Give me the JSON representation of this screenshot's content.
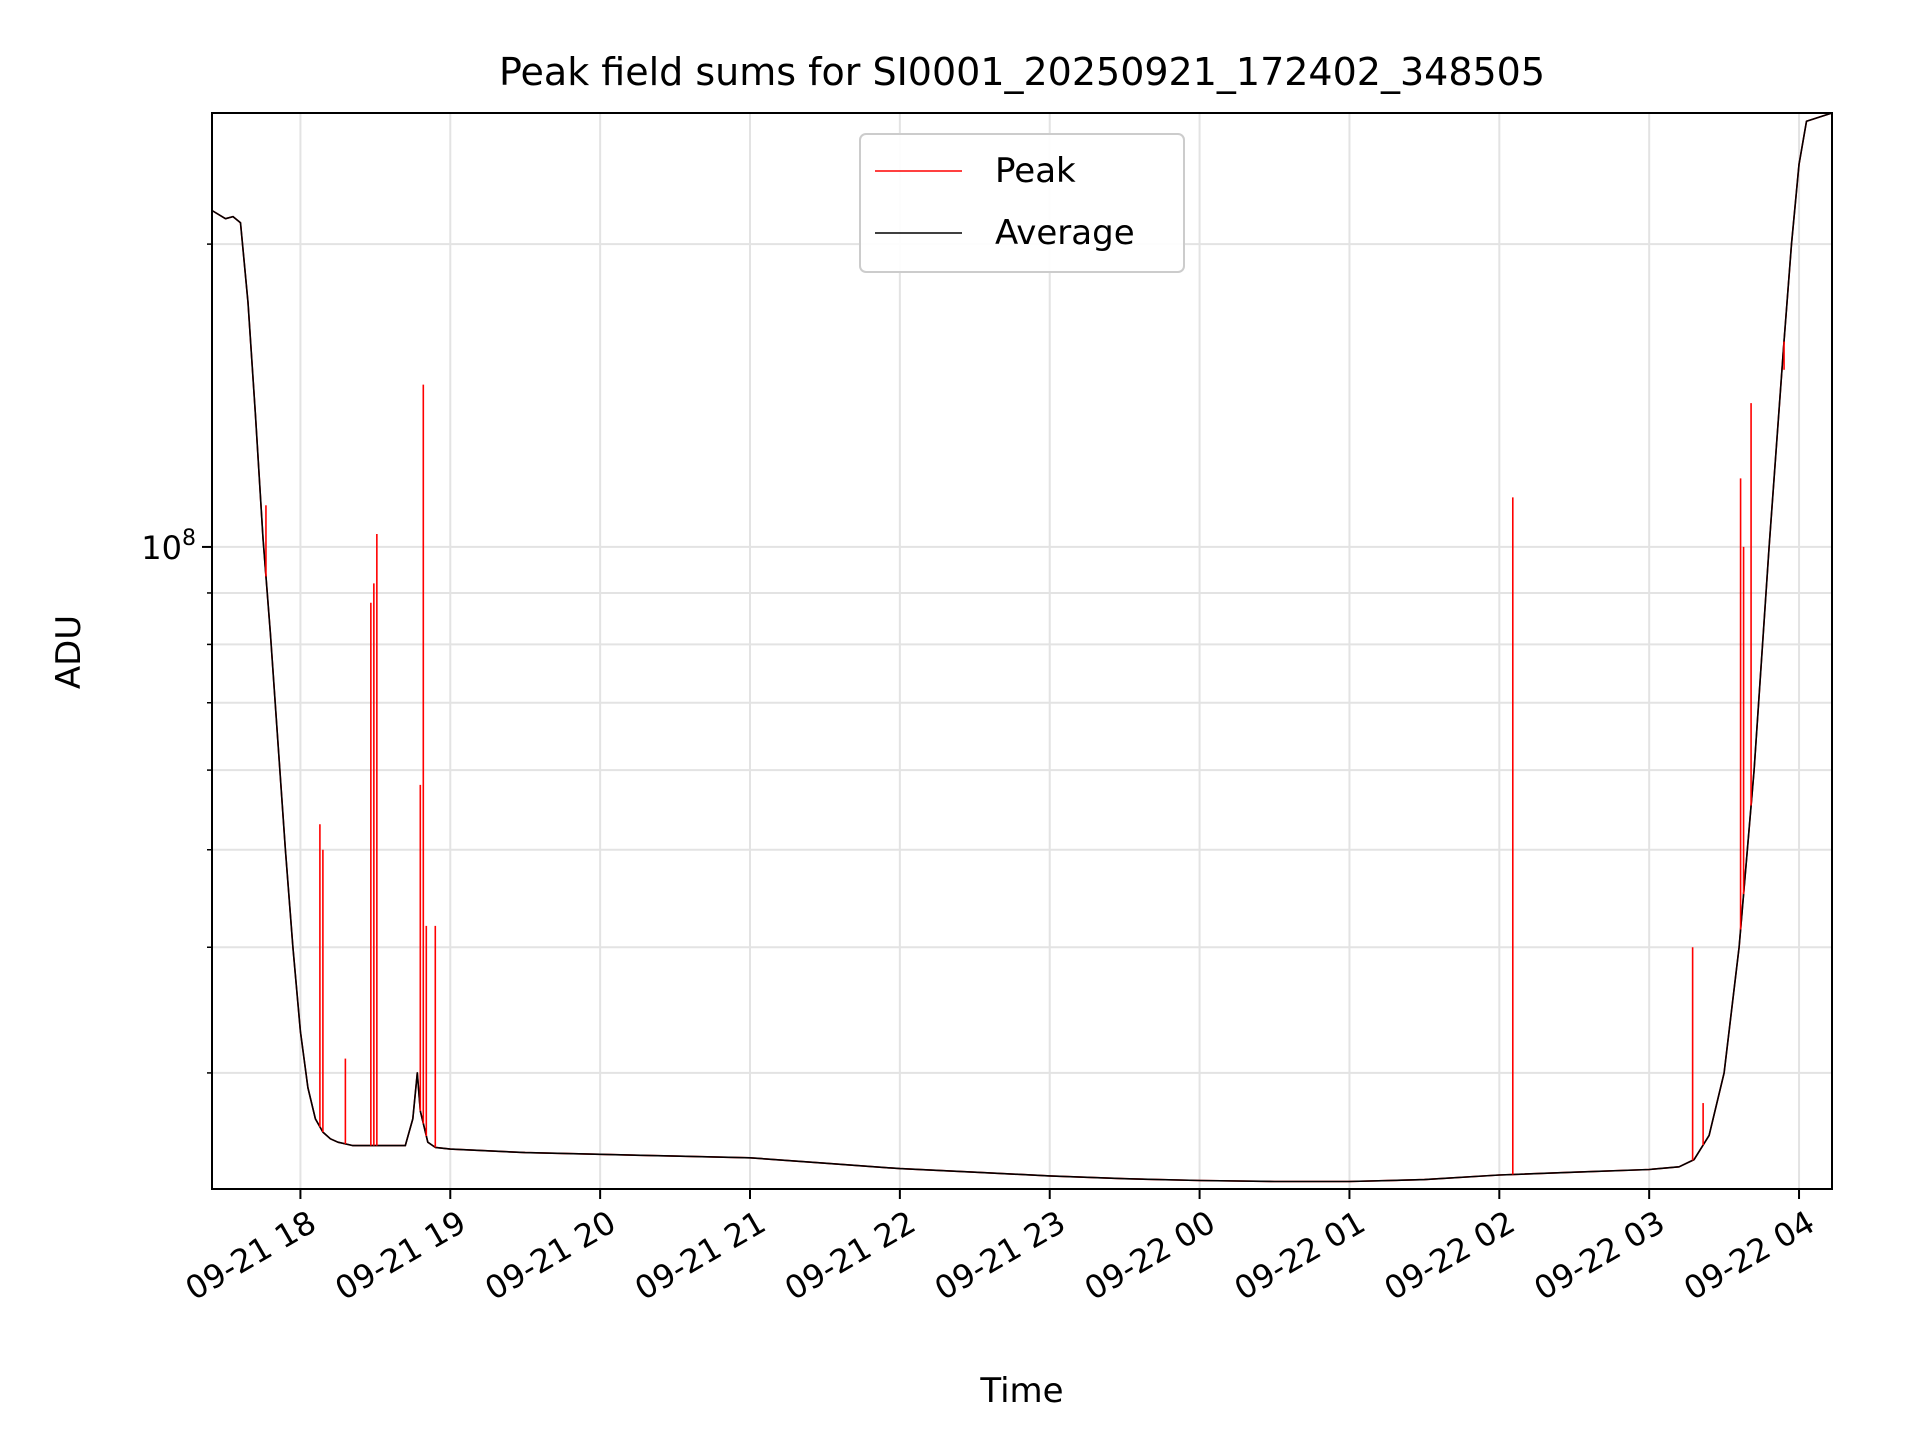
{
  "chart_data": {
    "type": "line",
    "title": "Peak field sums for SI0001_20250921_172402_348505",
    "xlabel": "Time",
    "ylabel": "ADU",
    "yscale": "log",
    "xlim_hours": [
      17.41,
      28.22
    ],
    "ylim": [
      23000000,
      270000000
    ],
    "grid": true,
    "legend_position": "upper center",
    "x_ticks": [
      {
        "hour": 18,
        "label": "09-21 18"
      },
      {
        "hour": 19,
        "label": "09-21 19"
      },
      {
        "hour": 20,
        "label": "09-21 20"
      },
      {
        "hour": 21,
        "label": "09-21 21"
      },
      {
        "hour": 22,
        "label": "09-21 22"
      },
      {
        "hour": 23,
        "label": "09-21 23"
      },
      {
        "hour": 24,
        "label": "09-22 00"
      },
      {
        "hour": 25,
        "label": "09-22 01"
      },
      {
        "hour": 26,
        "label": "09-22 02"
      },
      {
        "hour": 27,
        "label": "09-22 03"
      },
      {
        "hour": 28,
        "label": "09-22 04"
      }
    ],
    "y_major_ticks": [
      {
        "value": 100000000,
        "label_base": "10",
        "label_exp": "8"
      }
    ],
    "y_minor_ticks": [
      30000000,
      40000000,
      50000000,
      60000000,
      70000000,
      80000000,
      90000000,
      200000000
    ],
    "series": [
      {
        "name": "Average",
        "color": "#000000",
        "x_hours": [
          17.41,
          17.5,
          17.55,
          17.6,
          17.65,
          17.7,
          17.75,
          17.8,
          17.85,
          17.9,
          17.95,
          18.0,
          18.05,
          18.1,
          18.15,
          18.2,
          18.25,
          18.3,
          18.35,
          18.4,
          18.5,
          18.6,
          18.7,
          18.75,
          18.78,
          18.8,
          18.85,
          18.9,
          19.0,
          19.5,
          20.0,
          20.5,
          21.0,
          21.5,
          22.0,
          22.5,
          23.0,
          23.5,
          24.0,
          24.5,
          25.0,
          25.5,
          26.0,
          26.5,
          27.0,
          27.2,
          27.3,
          27.4,
          27.5,
          27.6,
          27.7,
          27.8,
          27.9,
          27.95,
          28.0,
          28.05,
          28.22
        ],
        "values": [
          216000000,
          212000000,
          213000000,
          210000000,
          175000000,
          135000000,
          102000000,
          82000000,
          64000000,
          50000000,
          40000000,
          33000000,
          29000000,
          27000000,
          26200000,
          25800000,
          25600000,
          25500000,
          25400000,
          25400000,
          25400000,
          25400000,
          25400000,
          27000000,
          30000000,
          27500000,
          25600000,
          25300000,
          25200000,
          25000000,
          24900000,
          24800000,
          24700000,
          24400000,
          24100000,
          23900000,
          23700000,
          23550000,
          23450000,
          23400000,
          23400000,
          23500000,
          23750000,
          23900000,
          24050000,
          24200000,
          24600000,
          26000000,
          30000000,
          40000000,
          60000000,
          100000000,
          160000000,
          200000000,
          240000000,
          265000000,
          270000000
        ]
      },
      {
        "name": "Peak",
        "color": "#ff0000",
        "x_hours": [
          17.41,
          17.5,
          17.55,
          17.6,
          17.65,
          17.7,
          17.75,
          17.8,
          17.85,
          17.9,
          17.95,
          18.0,
          18.05,
          18.1,
          18.15,
          18.2,
          18.25,
          18.3,
          18.35,
          18.4,
          18.5,
          18.6,
          18.7,
          18.75,
          18.78,
          18.8,
          18.85,
          18.9,
          19.0,
          19.5,
          20.0,
          20.5,
          21.0,
          21.5,
          22.0,
          22.5,
          23.0,
          23.5,
          24.0,
          24.5,
          25.0,
          25.5,
          26.0,
          26.5,
          27.0,
          27.2,
          27.3,
          27.4,
          27.5,
          27.6,
          27.7,
          27.8,
          27.9,
          27.95,
          28.0,
          28.05,
          28.22
        ],
        "values": [
          216000000,
          212000000,
          213000000,
          210000000,
          175000000,
          135000000,
          102000000,
          82000000,
          64000000,
          50000000,
          40000000,
          33000000,
          29000000,
          27000000,
          26200000,
          25800000,
          25600000,
          25500000,
          25400000,
          25400000,
          25400000,
          25400000,
          25400000,
          27000000,
          30000000,
          27500000,
          25600000,
          25300000,
          25200000,
          25000000,
          24900000,
          24800000,
          24700000,
          24400000,
          24100000,
          23900000,
          23700000,
          23550000,
          23450000,
          23400000,
          23400000,
          23500000,
          23750000,
          23900000,
          24050000,
          24200000,
          24600000,
          26000000,
          30000000,
          40000000,
          60000000,
          100000000,
          160000000,
          200000000,
          240000000,
          265000000,
          270000000
        ],
        "spikes": [
          {
            "hour": 17.77,
            "value": 110000000
          },
          {
            "hour": 18.13,
            "value": 53000000
          },
          {
            "hour": 18.15,
            "value": 50000000
          },
          {
            "hour": 18.3,
            "value": 31000000
          },
          {
            "hour": 18.47,
            "value": 88000000
          },
          {
            "hour": 18.49,
            "value": 92000000
          },
          {
            "hour": 18.51,
            "value": 103000000
          },
          {
            "hour": 18.8,
            "value": 58000000
          },
          {
            "hour": 18.82,
            "value": 145000000
          },
          {
            "hour": 18.84,
            "value": 42000000
          },
          {
            "hour": 18.9,
            "value": 42000000
          },
          {
            "hour": 26.09,
            "value": 112000000
          },
          {
            "hour": 27.29,
            "value": 40000000
          },
          {
            "hour": 27.36,
            "value": 28000000
          },
          {
            "hour": 27.61,
            "value": 117000000
          },
          {
            "hour": 27.63,
            "value": 100000000
          },
          {
            "hour": 27.68,
            "value": 139000000
          },
          {
            "hour": 27.9,
            "value": 150000000
          }
        ]
      }
    ]
  }
}
